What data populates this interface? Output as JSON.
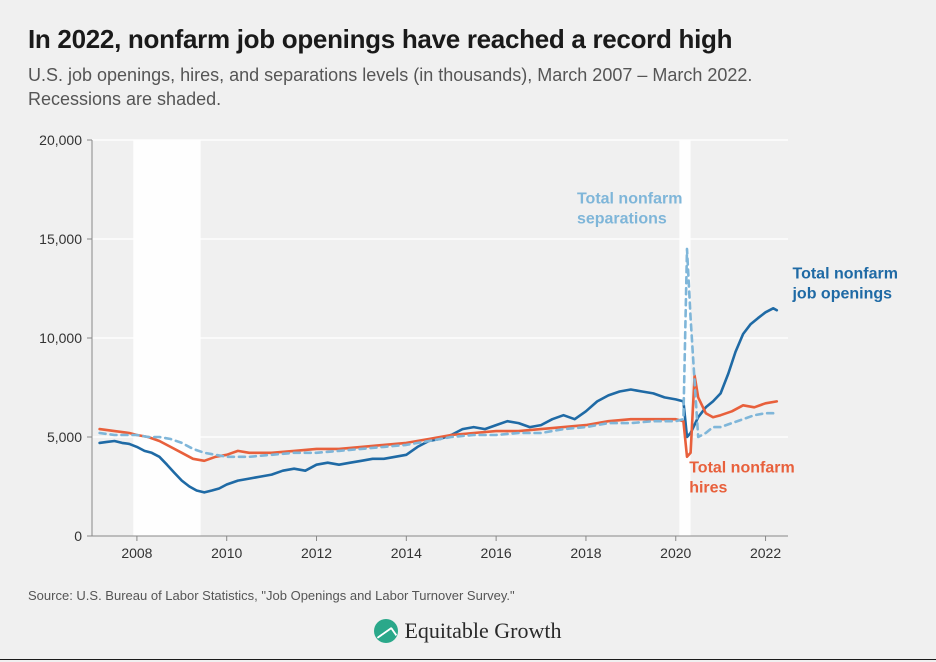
{
  "title": "In 2022, nonfarm job openings have reached a record high",
  "subtitle": "U.S. job openings, hires, and separations levels (in thousands), March 2007 – March 2022. Recessions are shaded.",
  "source": "Source: U.S. Bureau of Labor Statistics, \"Job Openings and Labor Turnover Survey.\"",
  "brand": "Equitable Growth",
  "chart": {
    "type": "line",
    "background_color": "#f0f0f0",
    "grid_color": "#ffffff",
    "axis_color": "#888888",
    "font_label_size": 14,
    "xlim": [
      2007.0,
      2022.5
    ],
    "ylim": [
      0,
      20000
    ],
    "yticks": [
      0,
      5000,
      10000,
      15000,
      20000
    ],
    "ytick_labels": [
      "0",
      "5,000",
      "10,000",
      "15,000",
      "20,000"
    ],
    "xticks": [
      2008,
      2010,
      2012,
      2014,
      2016,
      2018,
      2020,
      2022
    ],
    "xtick_labels": [
      "2008",
      "2010",
      "2012",
      "2014",
      "2016",
      "2018",
      "2020",
      "2022"
    ],
    "recessions": [
      {
        "start": 2007.92,
        "end": 2009.42
      },
      {
        "start": 2020.08,
        "end": 2020.33
      }
    ],
    "series": [
      {
        "name": "Total nonfarm job openings",
        "color": "#1f6aa5",
        "dash": "none",
        "line_width": 2.6,
        "label_pos": {
          "x": 2022.6,
          "y": 13000
        },
        "label_lines": [
          "Total nonfarm",
          "job openings"
        ],
        "data": [
          [
            2007.17,
            4700
          ],
          [
            2007.33,
            4750
          ],
          [
            2007.5,
            4800
          ],
          [
            2007.67,
            4700
          ],
          [
            2007.83,
            4650
          ],
          [
            2008.0,
            4500
          ],
          [
            2008.17,
            4300
          ],
          [
            2008.33,
            4200
          ],
          [
            2008.5,
            4000
          ],
          [
            2008.67,
            3600
          ],
          [
            2008.83,
            3200
          ],
          [
            2009.0,
            2800
          ],
          [
            2009.17,
            2500
          ],
          [
            2009.33,
            2300
          ],
          [
            2009.5,
            2200
          ],
          [
            2009.67,
            2300
          ],
          [
            2009.83,
            2400
          ],
          [
            2010.0,
            2600
          ],
          [
            2010.25,
            2800
          ],
          [
            2010.5,
            2900
          ],
          [
            2010.75,
            3000
          ],
          [
            2011.0,
            3100
          ],
          [
            2011.25,
            3300
          ],
          [
            2011.5,
            3400
          ],
          [
            2011.75,
            3300
          ],
          [
            2012.0,
            3600
          ],
          [
            2012.25,
            3700
          ],
          [
            2012.5,
            3600
          ],
          [
            2012.75,
            3700
          ],
          [
            2013.0,
            3800
          ],
          [
            2013.25,
            3900
          ],
          [
            2013.5,
            3900
          ],
          [
            2013.75,
            4000
          ],
          [
            2014.0,
            4100
          ],
          [
            2014.25,
            4500
          ],
          [
            2014.5,
            4800
          ],
          [
            2014.75,
            4900
          ],
          [
            2015.0,
            5100
          ],
          [
            2015.25,
            5400
          ],
          [
            2015.5,
            5500
          ],
          [
            2015.75,
            5400
          ],
          [
            2016.0,
            5600
          ],
          [
            2016.25,
            5800
          ],
          [
            2016.5,
            5700
          ],
          [
            2016.75,
            5500
          ],
          [
            2017.0,
            5600
          ],
          [
            2017.25,
            5900
          ],
          [
            2017.5,
            6100
          ],
          [
            2017.75,
            5900
          ],
          [
            2018.0,
            6300
          ],
          [
            2018.25,
            6800
          ],
          [
            2018.5,
            7100
          ],
          [
            2018.75,
            7300
          ],
          [
            2019.0,
            7400
          ],
          [
            2019.25,
            7300
          ],
          [
            2019.5,
            7200
          ],
          [
            2019.75,
            7000
          ],
          [
            2020.0,
            6900
          ],
          [
            2020.17,
            6800
          ],
          [
            2020.25,
            5000
          ],
          [
            2020.33,
            5200
          ],
          [
            2020.5,
            6000
          ],
          [
            2020.67,
            6500
          ],
          [
            2020.83,
            6800
          ],
          [
            2021.0,
            7200
          ],
          [
            2021.17,
            8200
          ],
          [
            2021.33,
            9300
          ],
          [
            2021.5,
            10200
          ],
          [
            2021.67,
            10700
          ],
          [
            2021.83,
            11000
          ],
          [
            2022.0,
            11300
          ],
          [
            2022.17,
            11500
          ],
          [
            2022.25,
            11400
          ]
        ]
      },
      {
        "name": "Total nonfarm hires",
        "color": "#e8603c",
        "dash": "none",
        "line_width": 2.6,
        "label_pos": {
          "x": 2020.3,
          "y": 3200
        },
        "label_lines": [
          "Total nonfarm",
          "hires"
        ],
        "data": [
          [
            2007.17,
            5400
          ],
          [
            2007.5,
            5300
          ],
          [
            2007.83,
            5200
          ],
          [
            2008.0,
            5100
          ],
          [
            2008.25,
            5000
          ],
          [
            2008.5,
            4800
          ],
          [
            2008.75,
            4500
          ],
          [
            2009.0,
            4200
          ],
          [
            2009.25,
            3900
          ],
          [
            2009.5,
            3800
          ],
          [
            2009.75,
            4000
          ],
          [
            2010.0,
            4100
          ],
          [
            2010.25,
            4300
          ],
          [
            2010.5,
            4200
          ],
          [
            2010.75,
            4200
          ],
          [
            2011.0,
            4200
          ],
          [
            2011.5,
            4300
          ],
          [
            2012.0,
            4400
          ],
          [
            2012.5,
            4400
          ],
          [
            2013.0,
            4500
          ],
          [
            2013.5,
            4600
          ],
          [
            2014.0,
            4700
          ],
          [
            2014.5,
            4900
          ],
          [
            2015.0,
            5100
          ],
          [
            2015.5,
            5200
          ],
          [
            2016.0,
            5300
          ],
          [
            2016.5,
            5300
          ],
          [
            2017.0,
            5400
          ],
          [
            2017.5,
            5500
          ],
          [
            2018.0,
            5600
          ],
          [
            2018.5,
            5800
          ],
          [
            2019.0,
            5900
          ],
          [
            2019.5,
            5900
          ],
          [
            2020.0,
            5900
          ],
          [
            2020.17,
            5800
          ],
          [
            2020.25,
            4000
          ],
          [
            2020.33,
            4200
          ],
          [
            2020.42,
            8100
          ],
          [
            2020.5,
            7000
          ],
          [
            2020.67,
            6200
          ],
          [
            2020.83,
            6000
          ],
          [
            2021.0,
            6100
          ],
          [
            2021.25,
            6300
          ],
          [
            2021.5,
            6600
          ],
          [
            2021.75,
            6500
          ],
          [
            2022.0,
            6700
          ],
          [
            2022.25,
            6800
          ]
        ]
      },
      {
        "name": "Total nonfarm separations",
        "color": "#7fb6d9",
        "dash": "6,5",
        "line_width": 2.6,
        "label_pos": {
          "x": 2017.8,
          "y": 16800
        },
        "label_lines": [
          "Total nonfarm",
          "separations"
        ],
        "data": [
          [
            2007.17,
            5200
          ],
          [
            2007.5,
            5100
          ],
          [
            2007.83,
            5100
          ],
          [
            2008.0,
            5100
          ],
          [
            2008.25,
            5000
          ],
          [
            2008.5,
            5000
          ],
          [
            2008.75,
            4900
          ],
          [
            2009.0,
            4700
          ],
          [
            2009.25,
            4400
          ],
          [
            2009.5,
            4200
          ],
          [
            2009.75,
            4100
          ],
          [
            2010.0,
            4000
          ],
          [
            2010.5,
            4000
          ],
          [
            2011.0,
            4100
          ],
          [
            2011.5,
            4200
          ],
          [
            2012.0,
            4200
          ],
          [
            2012.5,
            4300
          ],
          [
            2013.0,
            4400
          ],
          [
            2013.5,
            4500
          ],
          [
            2014.0,
            4600
          ],
          [
            2014.5,
            4800
          ],
          [
            2015.0,
            5000
          ],
          [
            2015.5,
            5100
          ],
          [
            2016.0,
            5100
          ],
          [
            2016.5,
            5200
          ],
          [
            2017.0,
            5200
          ],
          [
            2017.5,
            5400
          ],
          [
            2018.0,
            5500
          ],
          [
            2018.5,
            5700
          ],
          [
            2019.0,
            5700
          ],
          [
            2019.5,
            5800
          ],
          [
            2020.0,
            5800
          ],
          [
            2020.17,
            5900
          ],
          [
            2020.25,
            14500
          ],
          [
            2020.33,
            11000
          ],
          [
            2020.42,
            7800
          ],
          [
            2020.5,
            5000
          ],
          [
            2020.67,
            5200
          ],
          [
            2020.83,
            5500
          ],
          [
            2021.0,
            5500
          ],
          [
            2021.25,
            5700
          ],
          [
            2021.5,
            5900
          ],
          [
            2021.75,
            6100
          ],
          [
            2022.0,
            6200
          ],
          [
            2022.25,
            6200
          ]
        ]
      }
    ]
  }
}
